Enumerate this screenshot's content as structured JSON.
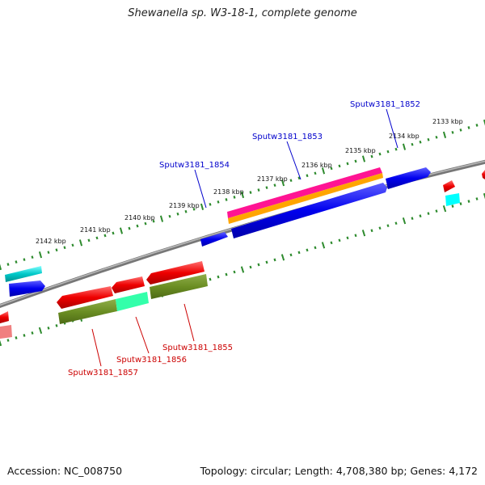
{
  "title": "Shewanella sp. W3-18-1, complete genome",
  "footer": {
    "accession": "Accession: NC_008750",
    "topology": "Topology: circular; Length: 4,708,380 bp; Genes: 4,172"
  },
  "scale_labels": [
    "2142 kbp",
    "2141 kbp",
    "2140 kbp",
    "2139 kbp",
    "2138 kbp",
    "2137 kbp",
    "2136 kbp",
    "2135 kbp",
    "2134 kbp",
    "2133 kbp"
  ],
  "gene_labels": {
    "top": [
      "Sputw3181_1852",
      "Sputw3181_1853",
      "Sputw3181_1854"
    ],
    "bottom": [
      "Sputw3181_1855",
      "Sputw3181_1856",
      "Sputw3181_1857"
    ]
  },
  "colors": {
    "backbone": "#888888",
    "tick": "#2e8b2e",
    "cds_forward": "#0000ee",
    "cds_reverse": "#ee0000",
    "cog_cyan": "#00c8c8",
    "cog_olive": "#6b8e23",
    "cog_green": "#33ffaa",
    "cog_magenta": "#ff1493",
    "cog_orange": "#ffa500",
    "cog_pink": "#f08080",
    "label_forward": "#0000cc",
    "label_reverse": "#cc0000"
  }
}
